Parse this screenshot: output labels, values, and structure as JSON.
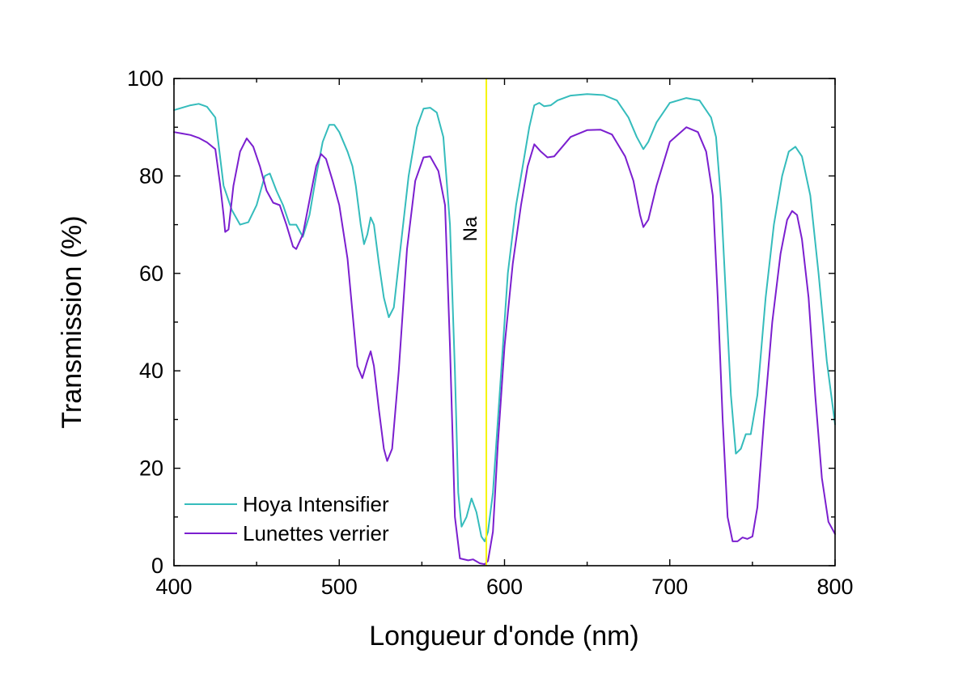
{
  "chart_data": {
    "type": "line",
    "title": "",
    "xlabel": "Longueur d'onde (nm)",
    "ylabel": "Transmission (%)",
    "xlim": [
      400,
      800
    ],
    "ylim": [
      0,
      100
    ],
    "xticks": [
      400,
      500,
      600,
      700,
      800
    ],
    "yticks": [
      0,
      20,
      40,
      60,
      80,
      100
    ],
    "x_tick_labels": [
      "400",
      "500",
      "600",
      "700",
      "800"
    ],
    "y_tick_labels": [
      "0",
      "20",
      "40",
      "60",
      "80",
      "100"
    ],
    "grid": false,
    "legend_position": "bottom-left",
    "reference_line": {
      "x": 589,
      "label": "Na",
      "color": "#f5f500"
    },
    "series": [
      {
        "name": "Hoya Intensifier",
        "color": "#35bcbc",
        "points": [
          [
            400,
            93.5
          ],
          [
            405,
            94
          ],
          [
            410,
            94.5
          ],
          [
            415,
            94.8
          ],
          [
            420,
            94.2
          ],
          [
            425,
            92
          ],
          [
            430,
            78
          ],
          [
            435,
            73
          ],
          [
            440,
            70
          ],
          [
            445,
            70.5
          ],
          [
            450,
            74
          ],
          [
            455,
            80
          ],
          [
            458,
            80.5
          ],
          [
            462,
            77
          ],
          [
            466,
            74
          ],
          [
            470,
            70
          ],
          [
            474,
            70
          ],
          [
            478,
            67.5
          ],
          [
            482,
            72
          ],
          [
            486,
            80
          ],
          [
            490,
            87
          ],
          [
            494,
            90.5
          ],
          [
            497,
            90.5
          ],
          [
            500,
            89
          ],
          [
            505,
            85
          ],
          [
            508,
            82
          ],
          [
            510,
            78
          ],
          [
            513,
            70
          ],
          [
            515,
            66
          ],
          [
            517,
            68
          ],
          [
            519,
            71.5
          ],
          [
            521,
            70
          ],
          [
            524,
            62
          ],
          [
            527,
            55
          ],
          [
            530,
            51
          ],
          [
            533,
            53
          ],
          [
            537,
            65
          ],
          [
            542,
            80
          ],
          [
            547,
            90
          ],
          [
            551,
            93.8
          ],
          [
            555,
            94
          ],
          [
            559,
            93
          ],
          [
            563,
            88
          ],
          [
            567,
            70
          ],
          [
            570,
            40
          ],
          [
            572,
            15
          ],
          [
            574,
            8
          ],
          [
            577,
            10
          ],
          [
            580,
            13.8
          ],
          [
            583,
            11
          ],
          [
            586,
            6
          ],
          [
            588,
            5
          ],
          [
            590,
            7
          ],
          [
            593,
            15
          ],
          [
            597,
            35
          ],
          [
            602,
            60
          ],
          [
            607,
            74
          ],
          [
            611,
            82
          ],
          [
            615,
            90
          ],
          [
            618,
            94.5
          ],
          [
            621,
            95
          ],
          [
            624,
            94.3
          ],
          [
            628,
            94.5
          ],
          [
            632,
            95.5
          ],
          [
            640,
            96.5
          ],
          [
            650,
            96.8
          ],
          [
            660,
            96.6
          ],
          [
            668,
            95.5
          ],
          [
            675,
            92
          ],
          [
            680,
            88
          ],
          [
            684,
            85.5
          ],
          [
            687,
            87
          ],
          [
            692,
            91
          ],
          [
            700,
            95
          ],
          [
            710,
            96
          ],
          [
            718,
            95.5
          ],
          [
            725,
            92
          ],
          [
            728,
            88
          ],
          [
            731,
            75
          ],
          [
            734,
            55
          ],
          [
            737,
            35
          ],
          [
            740,
            23
          ],
          [
            743,
            24
          ],
          [
            746,
            27
          ],
          [
            749,
            27
          ],
          [
            753,
            35
          ],
          [
            758,
            55
          ],
          [
            763,
            70
          ],
          [
            768,
            80
          ],
          [
            772,
            85
          ],
          [
            776,
            86
          ],
          [
            780,
            84
          ],
          [
            785,
            76
          ],
          [
            790,
            60
          ],
          [
            795,
            42
          ],
          [
            800,
            29
          ]
        ]
      },
      {
        "name": "Lunettes verrier",
        "color": "#7b1fcf",
        "points": [
          [
            400,
            89
          ],
          [
            405,
            88.7
          ],
          [
            410,
            88.4
          ],
          [
            415,
            87.8
          ],
          [
            420,
            86.9
          ],
          [
            425,
            85.5
          ],
          [
            428,
            78
          ],
          [
            430,
            72
          ],
          [
            431,
            68.5
          ],
          [
            433,
            69
          ],
          [
            436,
            78
          ],
          [
            440,
            85
          ],
          [
            444,
            87.7
          ],
          [
            448,
            86
          ],
          [
            452,
            82
          ],
          [
            456,
            77
          ],
          [
            460,
            74.5
          ],
          [
            464,
            74
          ],
          [
            468,
            70
          ],
          [
            472,
            65.5
          ],
          [
            474,
            65
          ],
          [
            478,
            68
          ],
          [
            482,
            75
          ],
          [
            486,
            82
          ],
          [
            489,
            84.5
          ],
          [
            492,
            83.5
          ],
          [
            496,
            79
          ],
          [
            500,
            74
          ],
          [
            505,
            63
          ],
          [
            508,
            52
          ],
          [
            511,
            41
          ],
          [
            514,
            38.5
          ],
          [
            517,
            42
          ],
          [
            519,
            44
          ],
          [
            521,
            41
          ],
          [
            524,
            32
          ],
          [
            527,
            24
          ],
          [
            529,
            21.5
          ],
          [
            532,
            24
          ],
          [
            536,
            40
          ],
          [
            541,
            65
          ],
          [
            546,
            79
          ],
          [
            551,
            83.8
          ],
          [
            555,
            84
          ],
          [
            560,
            81
          ],
          [
            564,
            74
          ],
          [
            567,
            45
          ],
          [
            570,
            10
          ],
          [
            573,
            1.5
          ],
          [
            578,
            1.1
          ],
          [
            581,
            1.3
          ],
          [
            585,
            0.5
          ],
          [
            588,
            0.3
          ],
          [
            590,
            1
          ],
          [
            593,
            7
          ],
          [
            596,
            25
          ],
          [
            600,
            45
          ],
          [
            605,
            62
          ],
          [
            610,
            74
          ],
          [
            614,
            82
          ],
          [
            618,
            86.5
          ],
          [
            622,
            85
          ],
          [
            626,
            83.8
          ],
          [
            630,
            84
          ],
          [
            635,
            86
          ],
          [
            640,
            88
          ],
          [
            650,
            89.4
          ],
          [
            658,
            89.5
          ],
          [
            665,
            88.5
          ],
          [
            673,
            84
          ],
          [
            678,
            79
          ],
          [
            682,
            72
          ],
          [
            684,
            69.5
          ],
          [
            687,
            71
          ],
          [
            692,
            78
          ],
          [
            700,
            87
          ],
          [
            710,
            90
          ],
          [
            717,
            89
          ],
          [
            722,
            85
          ],
          [
            726,
            76
          ],
          [
            729,
            55
          ],
          [
            732,
            30
          ],
          [
            735,
            10
          ],
          [
            738,
            5
          ],
          [
            741,
            5
          ],
          [
            744,
            5.8
          ],
          [
            747,
            5.5
          ],
          [
            750,
            6
          ],
          [
            753,
            12
          ],
          [
            757,
            30
          ],
          [
            762,
            50
          ],
          [
            767,
            64
          ],
          [
            771,
            71
          ],
          [
            774,
            72.8
          ],
          [
            777,
            72
          ],
          [
            780,
            67
          ],
          [
            784,
            55
          ],
          [
            788,
            35
          ],
          [
            792,
            18
          ],
          [
            796,
            9
          ],
          [
            800,
            6.5
          ]
        ]
      }
    ]
  }
}
